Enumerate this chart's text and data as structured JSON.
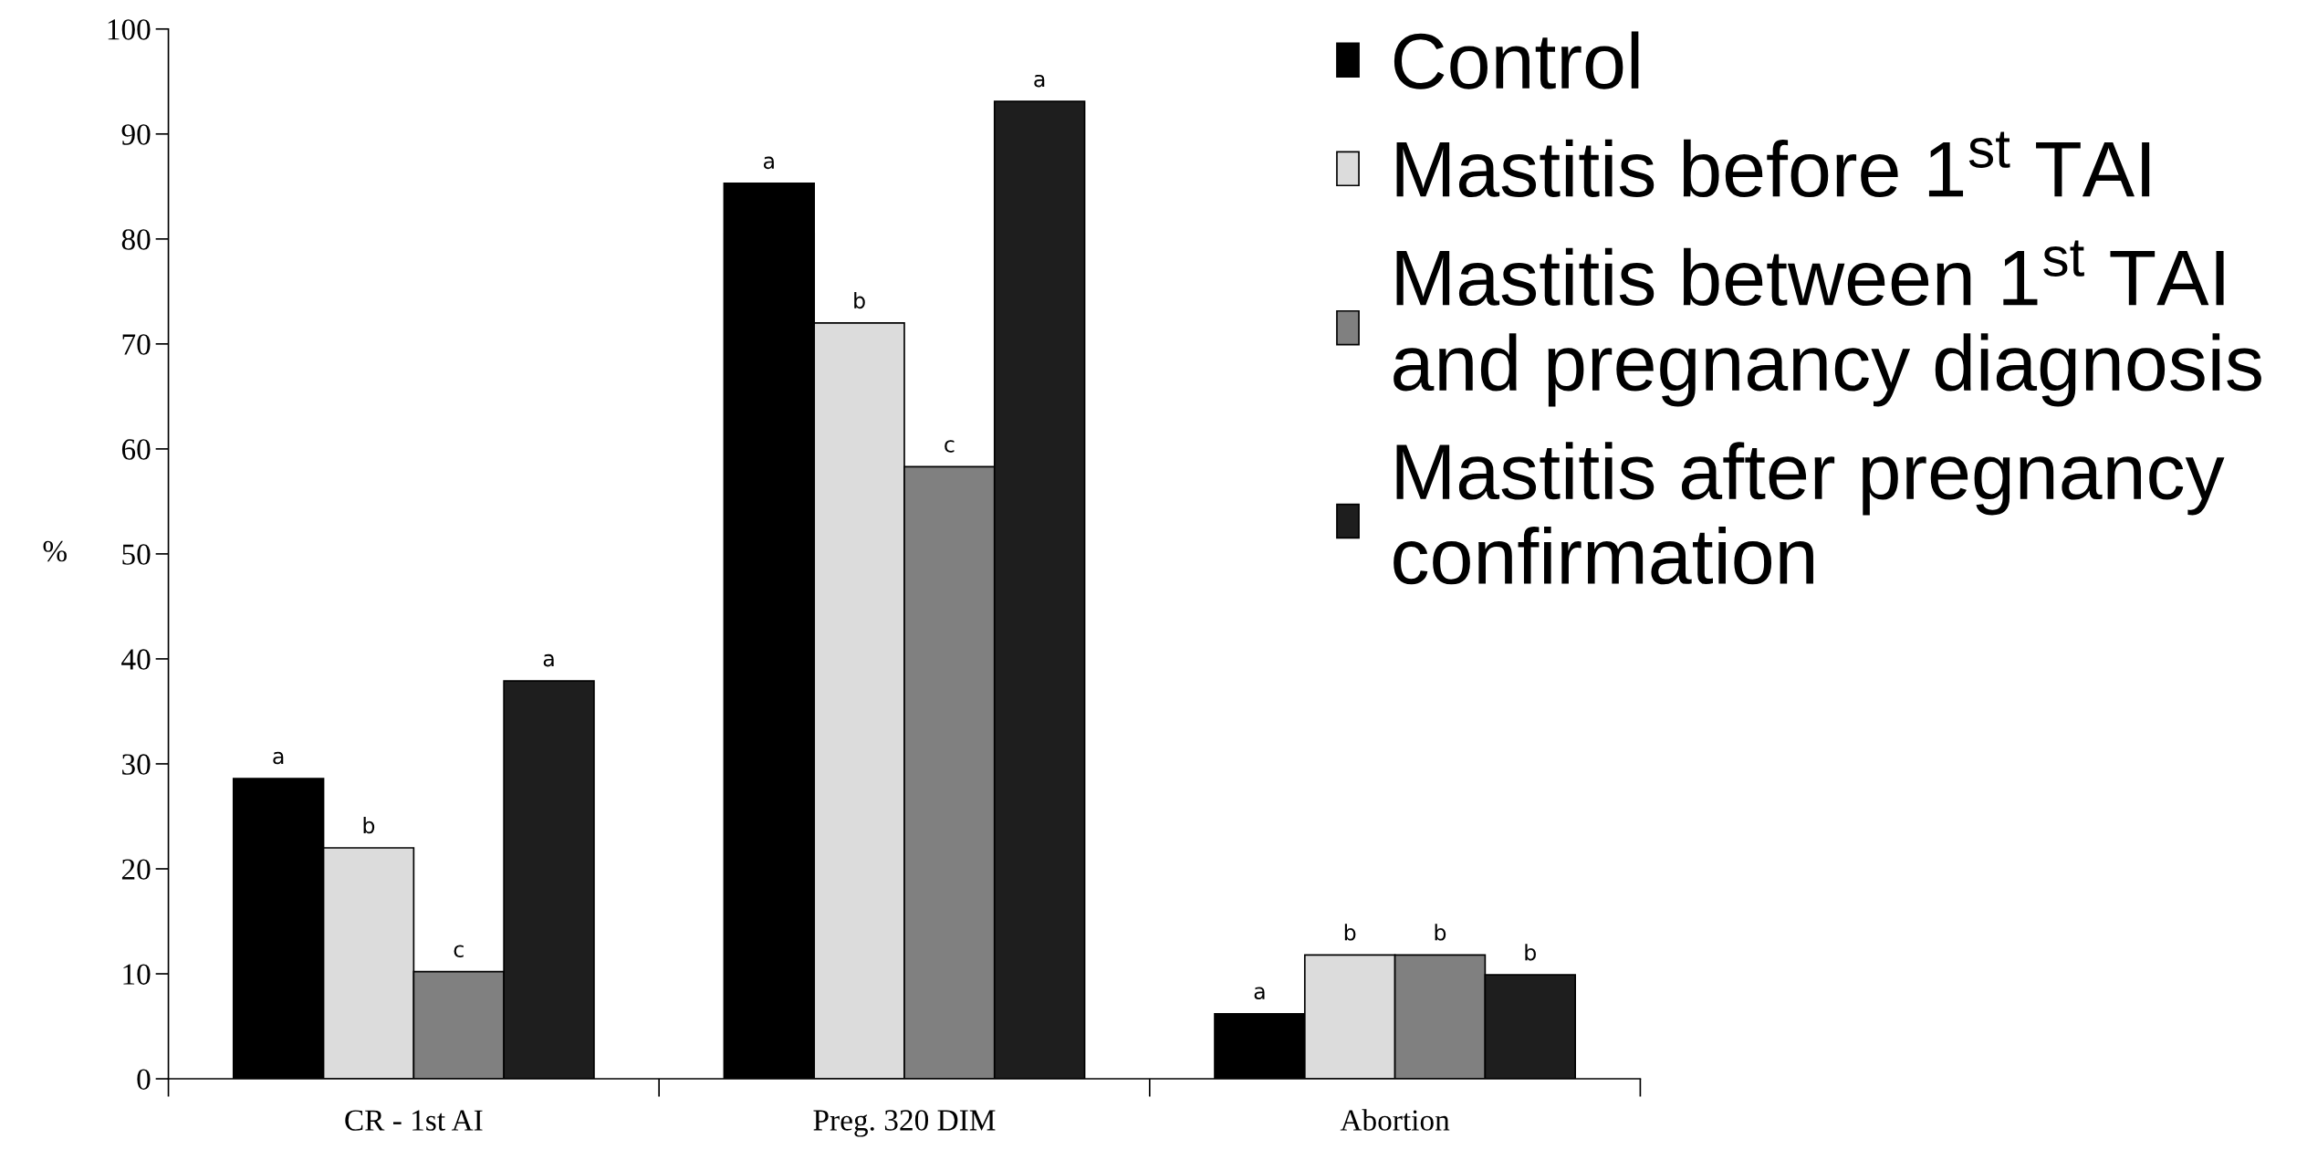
{
  "chart_data": {
    "type": "bar",
    "ylabel": "%",
    "categories": [
      "CR - 1st AI",
      "Preg. 320 DIM",
      "Abortion"
    ],
    "series": [
      {
        "name": "Control",
        "color": "#000000",
        "values": [
          28.6,
          85.3,
          6.2
        ],
        "value_labels": [
          "a",
          "a",
          "a"
        ]
      },
      {
        "name": "Mastitis before 1$^{st}$ TAI",
        "color": "#dcdcdc",
        "values": [
          22.0,
          72.0,
          11.8
        ],
        "value_labels": [
          "b",
          "b",
          "b"
        ]
      },
      {
        "name": "Mastitis between 1$^{st}$ TAI\nand pregnancy diagnosis",
        "color": "#808080",
        "values": [
          10.2,
          58.3,
          11.8
        ],
        "value_labels": [
          "c",
          "c",
          "b"
        ]
      },
      {
        "name": "Mastitis after pregnancy\nconfirmation",
        "color": "#1e1e1e",
        "values": [
          37.9,
          93.1,
          9.9
        ],
        "value_labels": [
          "a",
          "a",
          "b"
        ]
      }
    ],
    "ylim": [
      0,
      100
    ],
    "yticks": [
      0,
      10,
      20,
      30,
      40,
      50,
      60,
      70,
      80,
      90,
      100
    ],
    "legend": "top right",
    "grid": false
  }
}
